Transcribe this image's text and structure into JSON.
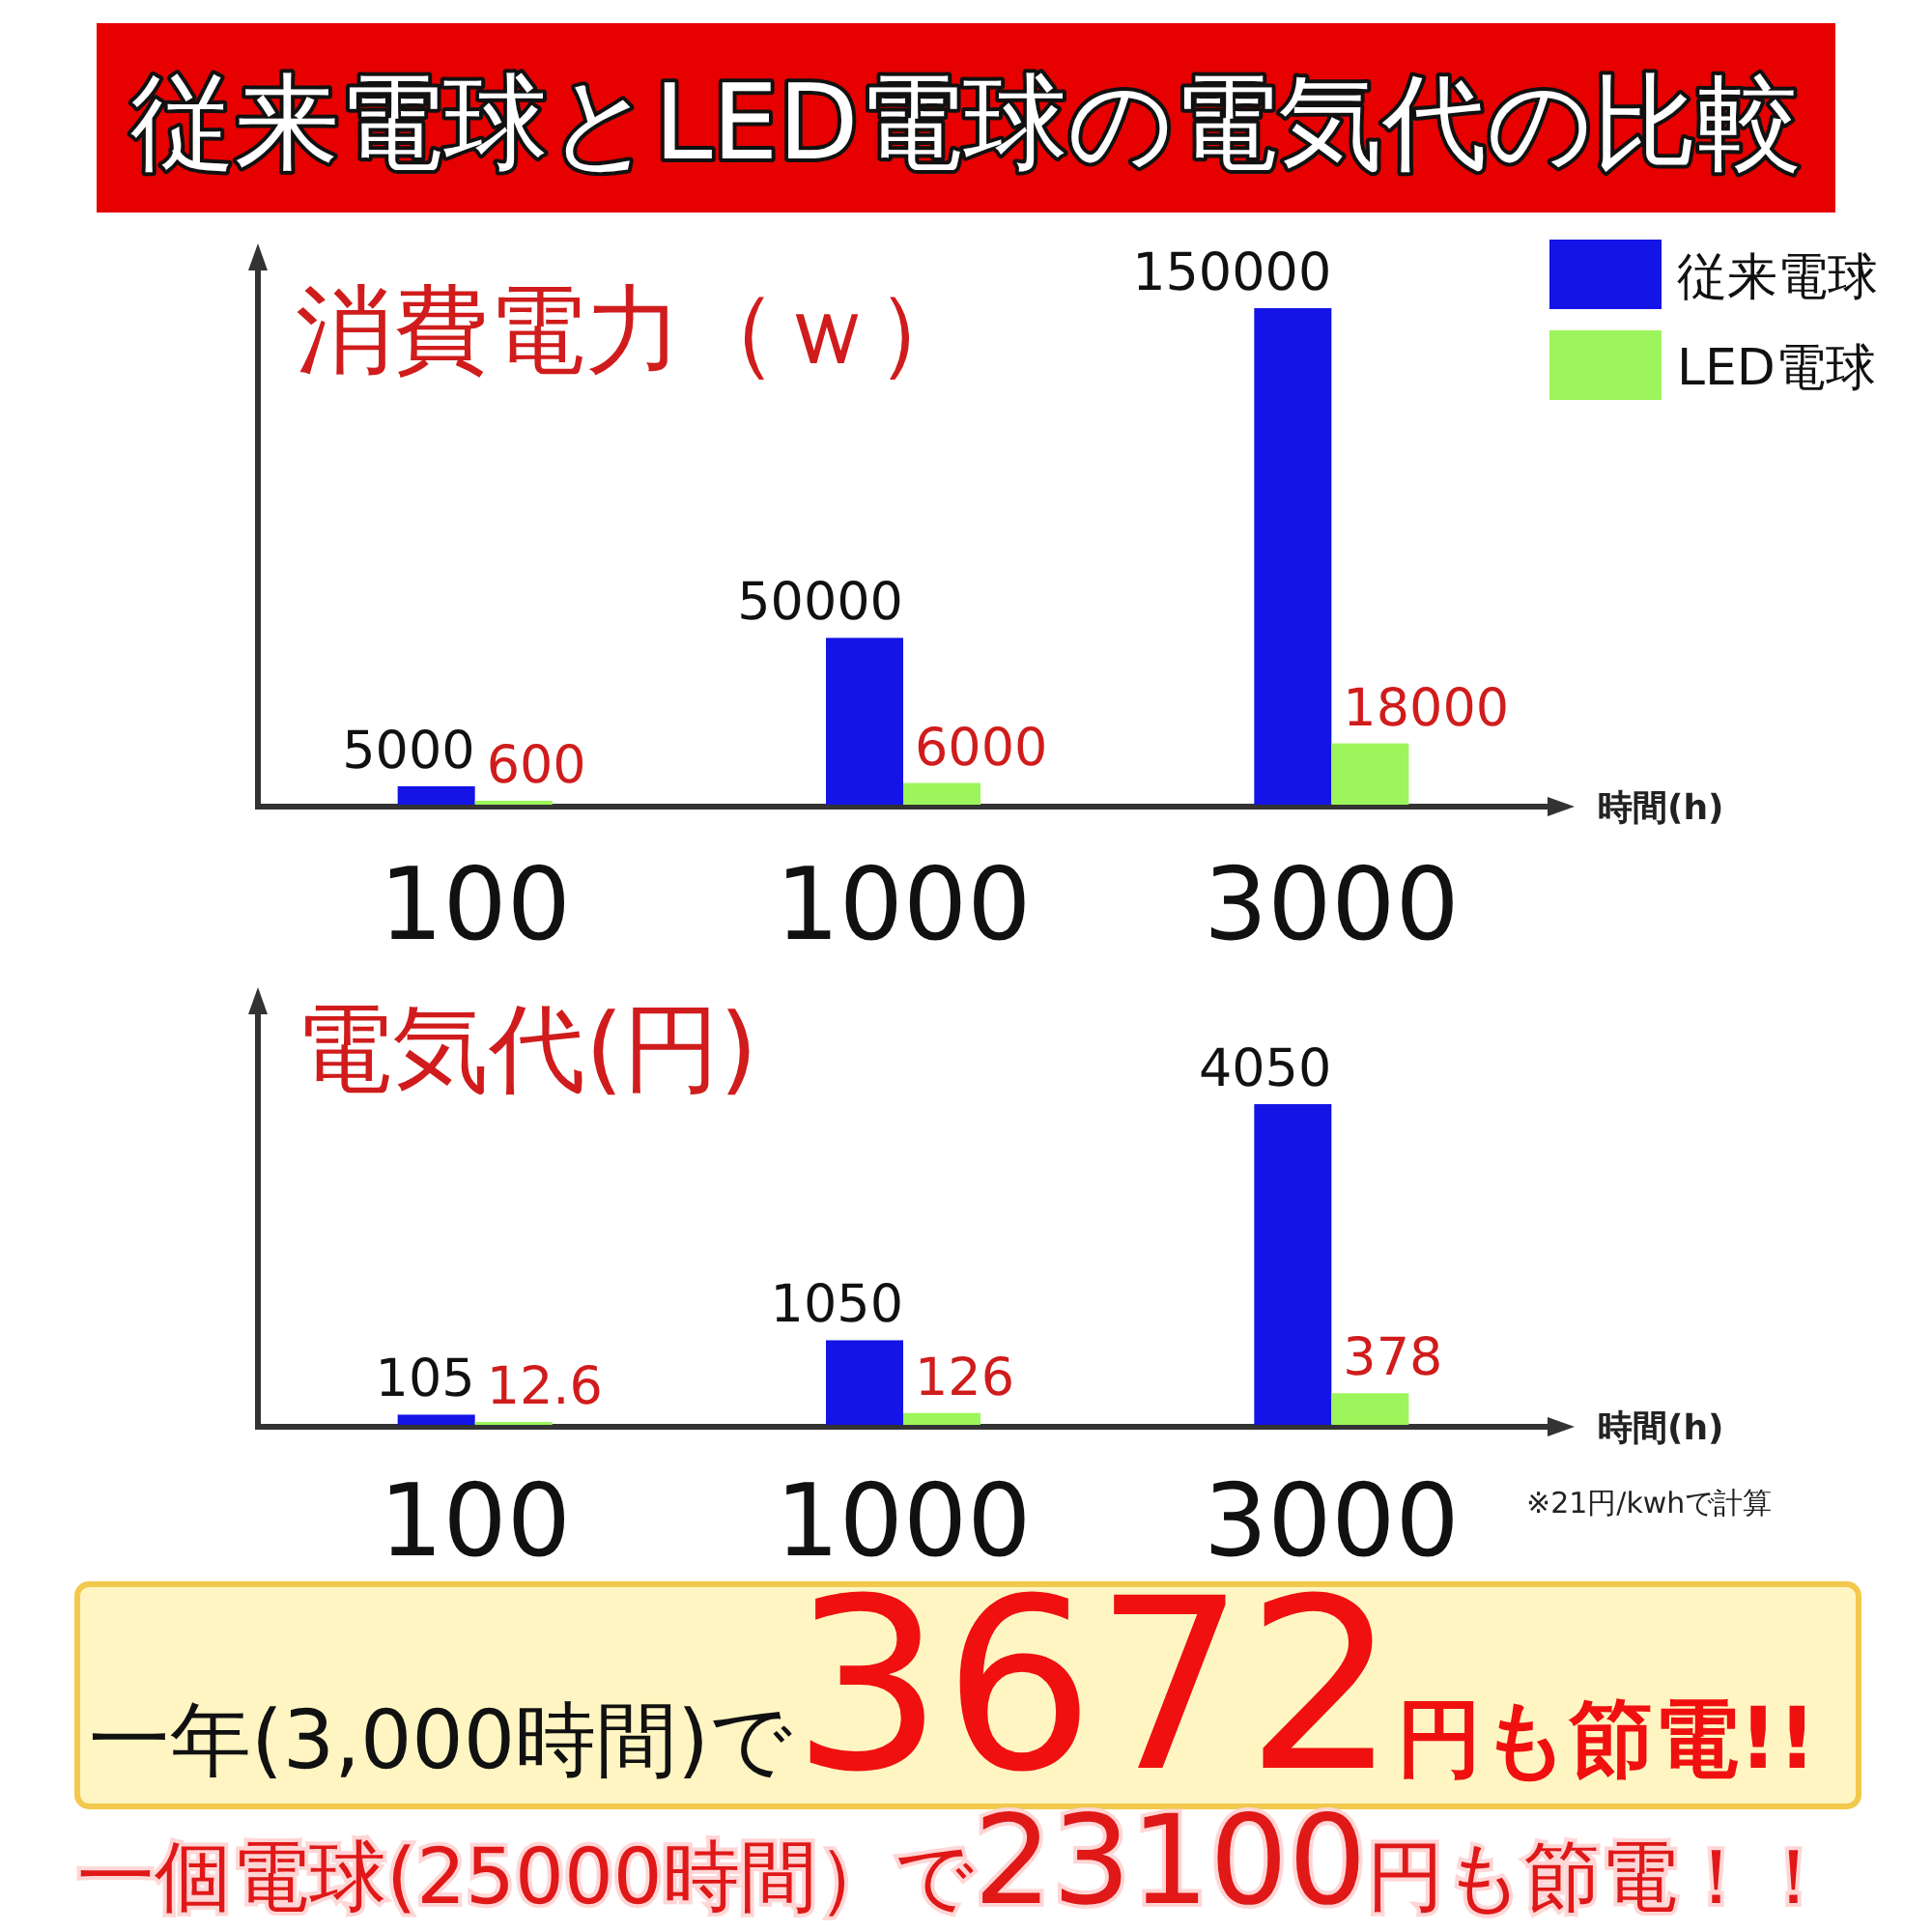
{
  "chart_data": [
    {
      "type": "bar",
      "title": "従来電球とLED電球の電気代の比較",
      "ylabel": "消費電力（ｗ）",
      "xlabel": "時間(h)",
      "categories": [
        "100",
        "1000",
        "3000"
      ],
      "series": [
        {
          "name": "従来電球",
          "color": "#1414e6",
          "values": [
            5000,
            50000,
            150000
          ]
        },
        {
          "name": "LED電球",
          "color": "#9cf55a",
          "values": [
            600,
            6000,
            18000
          ]
        }
      ],
      "data_labels": true,
      "legend": "top right"
    },
    {
      "type": "bar",
      "ylabel": "電気代(円)",
      "xlabel": "時間(h)",
      "categories": [
        "100",
        "1000",
        "3000"
      ],
      "series": [
        {
          "color": "#1414e6",
          "values": [
            105,
            1050,
            4050
          ]
        },
        {
          "color": "#9cf55a",
          "values": [
            12.6,
            126,
            378
          ]
        }
      ],
      "data_labels": true,
      "annotations": [
        "※21円/kwhで計算",
        "一年(3,000時間)で3672円も節電!!",
        "一個電球(25000時間）で23100円も節電！！"
      ]
    }
  ]
}
